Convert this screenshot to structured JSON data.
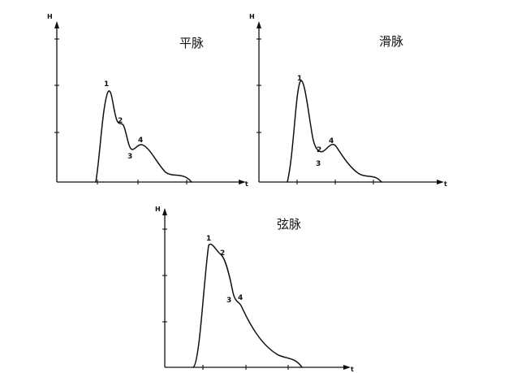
{
  "panels": [
    {
      "title": "平脉",
      "y_axis_label": "H",
      "x_axis_label": "t",
      "point_labels": [
        "1",
        "2",
        "3",
        "4"
      ]
    },
    {
      "title": "滑脉",
      "y_axis_label": "H",
      "x_axis_label": "t",
      "point_labels": [
        "1",
        "2",
        "3",
        "4"
      ]
    },
    {
      "title": "弦脉",
      "y_axis_label": "H",
      "x_axis_label": "t",
      "point_labels": [
        "1",
        "2",
        "3",
        "4"
      ]
    }
  ]
}
